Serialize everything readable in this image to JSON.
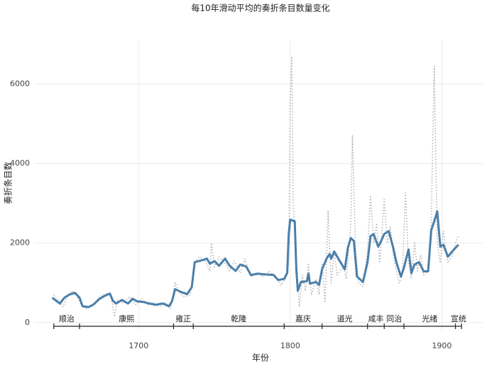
{
  "chart_data": {
    "type": "line",
    "title": "每10年滑动平均的奏折条目数量变化",
    "x_label": "年份",
    "y_label": "奏折条目数",
    "xlim": [
      1631,
      1927
    ],
    "ylim": [
      -200,
      7100
    ],
    "xticks": [
      1700,
      1800,
      1900
    ],
    "yticks": [
      0,
      2000,
      4000,
      6000
    ],
    "grid": true,
    "series": [
      {
        "color": "#b0b0b0",
        "style": "dotted",
        "x": [
          1644,
          1647,
          1650,
          1653,
          1656,
          1659,
          1662,
          1665,
          1668,
          1671,
          1674,
          1677,
          1680,
          1682,
          1684,
          1686,
          1690,
          1694,
          1698,
          1702,
          1706,
          1710,
          1714,
          1718,
          1721,
          1724,
          1727,
          1730,
          1734,
          1737,
          1740,
          1744,
          1747,
          1748,
          1750,
          1753,
          1757,
          1760,
          1763,
          1767,
          1770,
          1774,
          1778,
          1782,
          1786,
          1790,
          1794,
          1797,
          1799,
          1800,
          1801,
          1802,
          1803,
          1805,
          1806,
          1808,
          1810,
          1812,
          1814,
          1817,
          1819,
          1821,
          1823,
          1825,
          1827,
          1829,
          1831,
          1835,
          1837,
          1840,
          1841,
          1843,
          1845,
          1848,
          1851,
          1853,
          1855,
          1857,
          1859,
          1862,
          1864,
          1866,
          1868,
          1870,
          1872,
          1874,
          1876,
          1878,
          1880,
          1882,
          1884,
          1886,
          1888,
          1891,
          1893,
          1895,
          1897,
          1899,
          1901,
          1904,
          1907,
          1909,
          1911
        ],
        "values": [
          700,
          550,
          400,
          650,
          800,
          700,
          450,
          350,
          400,
          500,
          650,
          700,
          750,
          600,
          150,
          550,
          500,
          650,
          450,
          600,
          450,
          500,
          400,
          500,
          350,
          1000,
          750,
          650,
          700,
          1500,
          1650,
          1550,
          1300,
          2000,
          1400,
          1650,
          1500,
          1300,
          1550,
          1250,
          1600,
          1150,
          1250,
          1150,
          1300,
          1150,
          950,
          1100,
          1500,
          5500,
          6700,
          3000,
          2300,
          1000,
          400,
          1200,
          800,
          1500,
          700,
          1100,
          700,
          1500,
          500,
          2800,
          1000,
          1800,
          1200,
          1400,
          1100,
          2500,
          4700,
          2000,
          1000,
          900,
          1800,
          3200,
          2000,
          2500,
          1500,
          3100,
          2000,
          2400,
          1700,
          1300,
          1000,
          1200,
          3300,
          1500,
          1100,
          2000,
          1300,
          1700,
          1200,
          1300,
          2500,
          6450,
          2000,
          1500,
          2300,
          1500,
          1700,
          2000,
          2200
        ]
      },
      {
        "color": "#4a7fab",
        "style": "solid",
        "x": [
          1643,
          1648,
          1651,
          1654,
          1658,
          1661,
          1663,
          1667,
          1670,
          1674,
          1677,
          1681,
          1683,
          1685,
          1689,
          1693,
          1696,
          1699,
          1703,
          1707,
          1711,
          1716,
          1720,
          1722,
          1724,
          1728,
          1732,
          1735,
          1737,
          1742,
          1745,
          1747,
          1750,
          1753,
          1757,
          1760,
          1764,
          1767,
          1771,
          1774,
          1779,
          1784,
          1789,
          1792,
          1796,
          1798,
          1799,
          1800,
          1803,
          1804,
          1805,
          1807,
          1811,
          1812,
          1813,
          1817,
          1819,
          1821,
          1824,
          1826,
          1827,
          1829,
          1832,
          1836,
          1838,
          1840,
          1842,
          1844,
          1848,
          1851,
          1853,
          1855,
          1858,
          1860,
          1862,
          1865,
          1868,
          1870,
          1873,
          1875,
          1878,
          1880,
          1882,
          1885,
          1888,
          1891,
          1893,
          1895,
          1897,
          1899,
          1901,
          1904,
          1908,
          1911
        ],
        "values": [
          625,
          480,
          625,
          700,
          750,
          625,
          410,
          390,
          450,
          590,
          660,
          730,
          550,
          480,
          570,
          480,
          600,
          535,
          520,
          480,
          450,
          480,
          410,
          535,
          840,
          770,
          715,
          890,
          1520,
          1570,
          1610,
          1480,
          1550,
          1430,
          1610,
          1430,
          1300,
          1460,
          1410,
          1200,
          1230,
          1210,
          1200,
          1070,
          1100,
          1250,
          2230,
          2590,
          2550,
          1340,
          800,
          1020,
          1040,
          1230,
          980,
          1020,
          950,
          1340,
          1610,
          1730,
          1610,
          1790,
          1590,
          1340,
          1880,
          2130,
          2050,
          1160,
          1020,
          1520,
          2180,
          2230,
          1910,
          2050,
          2230,
          2300,
          1880,
          1520,
          1160,
          1380,
          1840,
          1250,
          1460,
          1520,
          1290,
          1290,
          2320,
          2550,
          2800,
          1910,
          1960,
          1660,
          1840,
          1960
        ]
      }
    ],
    "reigns": [
      {
        "label": "顺治",
        "start": 1644,
        "end": 1661
      },
      {
        "label": "康熙",
        "start": 1661,
        "end": 1723
      },
      {
        "label": "雍正",
        "start": 1723,
        "end": 1736
      },
      {
        "label": "乾隆",
        "start": 1736,
        "end": 1796
      },
      {
        "label": "嘉庆",
        "start": 1796,
        "end": 1821
      },
      {
        "label": "道光",
        "start": 1821,
        "end": 1851
      },
      {
        "label": "咸丰",
        "start": 1851,
        "end": 1862
      },
      {
        "label": "同治",
        "start": 1862,
        "end": 1875
      },
      {
        "label": "光绪",
        "start": 1875,
        "end": 1909
      },
      {
        "label": "宣统",
        "start": 1909,
        "end": 1913
      }
    ]
  }
}
